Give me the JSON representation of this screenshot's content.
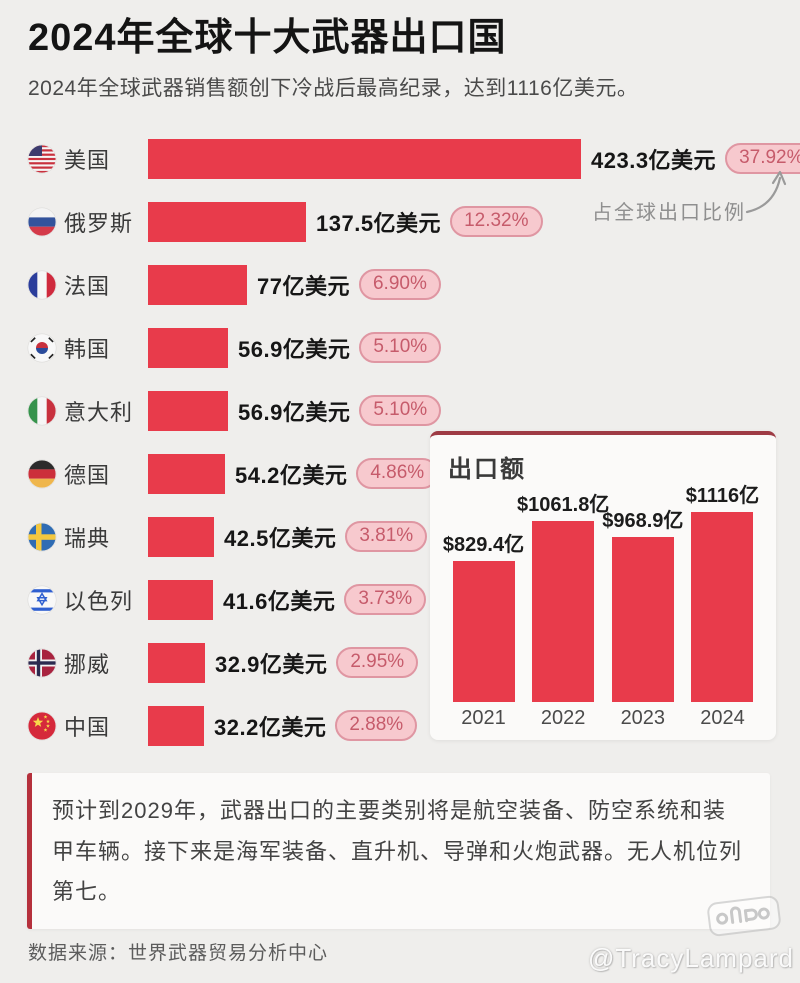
{
  "header": {
    "title": "2024年全球十大武器出口国",
    "subtitle": "2024年全球武器销售额创下冷战后最高纪录，达到1116亿美元。"
  },
  "ranking": {
    "share_annotation": "占全球出口比例",
    "rows": [
      {
        "country": "美国",
        "flag": "us",
        "value": 423.3,
        "value_label": "423.3亿美元",
        "share_label": "37.92%"
      },
      {
        "country": "俄罗斯",
        "flag": "ru",
        "value": 137.5,
        "value_label": "137.5亿美元",
        "share_label": "12.32%"
      },
      {
        "country": "法国",
        "flag": "fr",
        "value": 77,
        "value_label": "77亿美元",
        "share_label": "6.90%"
      },
      {
        "country": "韩国",
        "flag": "kr",
        "value": 56.9,
        "value_label": "56.9亿美元",
        "share_label": "5.10%"
      },
      {
        "country": "意大利",
        "flag": "it",
        "value": 56.9,
        "value_label": "56.9亿美元",
        "share_label": "5.10%"
      },
      {
        "country": "德国",
        "flag": "de",
        "value": 54.2,
        "value_label": "54.2亿美元",
        "share_label": "4.86%"
      },
      {
        "country": "瑞典",
        "flag": "se",
        "value": 42.5,
        "value_label": "42.5亿美元",
        "share_label": "3.81%"
      },
      {
        "country": "以色列",
        "flag": "il",
        "value": 41.6,
        "value_label": "41.6亿美元",
        "share_label": "3.73%"
      },
      {
        "country": "挪威",
        "flag": "no",
        "value": 32.9,
        "value_label": "32.9亿美元",
        "share_label": "2.95%"
      },
      {
        "country": "中国",
        "flag": "cn",
        "value": 32.2,
        "value_label": "32.2亿美元",
        "share_label": "2.88%"
      }
    ]
  },
  "inset": {
    "title": "出口额",
    "bars": [
      {
        "year": "2021",
        "value": 829.4,
        "label": "$829.4亿"
      },
      {
        "year": "2022",
        "value": 1061.8,
        "label": "$1061.8亿"
      },
      {
        "year": "2023",
        "value": 968.9,
        "label": "$968.9亿"
      },
      {
        "year": "2024",
        "value": 1116,
        "label": "$1116亿"
      }
    ]
  },
  "note": "预计到2029年，武器出口的主要类别将是航空装备、防空系统和装甲车辆。接下来是海军装备、直升机、导弹和火炮武器。无人机位列第七。",
  "footer": {
    "source": "数据来源：世界武器贸易分析中心",
    "watermark": "@TracyLampard"
  },
  "colors": {
    "background": "#efeeec",
    "bar_red": "#e83b4b",
    "badge_bg": "#f7c9ce",
    "badge_border": "#df96a2",
    "badge_text": "#c65b6b",
    "inset_top_border": "#9e3b45",
    "note_border": "#b5303c"
  },
  "chart_data": [
    {
      "type": "bar",
      "orientation": "horizontal",
      "title": "2024年全球十大武器出口国",
      "categories": [
        "美国",
        "俄罗斯",
        "法国",
        "韩国",
        "意大利",
        "德国",
        "瑞典",
        "以色列",
        "挪威",
        "中国"
      ],
      "values": [
        423.3,
        137.5,
        77,
        56.9,
        56.9,
        54.2,
        42.5,
        41.6,
        32.9,
        32.2
      ],
      "value_unit": "亿美元",
      "data_labels": [
        "423.3亿美元",
        "137.5亿美元",
        "77亿美元",
        "56.9亿美元",
        "56.9亿美元",
        "54.2亿美元",
        "42.5亿美元",
        "41.6亿美元",
        "32.9亿美元",
        "32.2亿美元"
      ],
      "share_percent": [
        37.92,
        12.32,
        6.9,
        5.1,
        5.1,
        4.86,
        3.81,
        3.73,
        2.95,
        2.88
      ],
      "annotation": "占全球出口比例",
      "grid": false,
      "legend": false
    },
    {
      "type": "bar",
      "orientation": "vertical",
      "title": "出口额",
      "categories": [
        "2021",
        "2022",
        "2023",
        "2024"
      ],
      "values": [
        829.4,
        1061.8,
        968.9,
        1116
      ],
      "data_labels": [
        "$829.4亿",
        "$1061.8亿",
        "$968.9亿",
        "$1116亿"
      ],
      "value_unit": "亿美元",
      "grid": false,
      "legend": false
    }
  ]
}
